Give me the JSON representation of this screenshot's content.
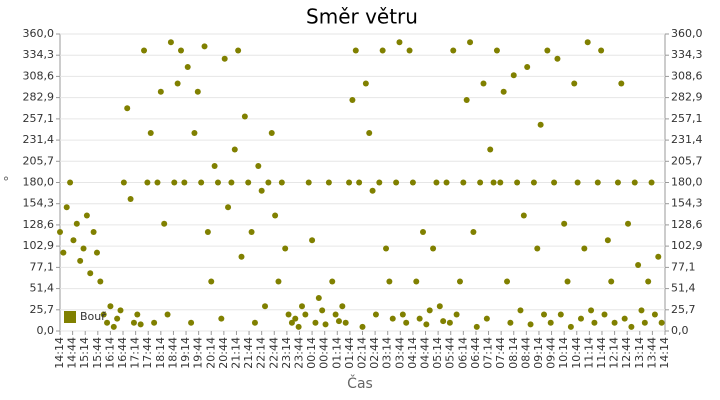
{
  "chart_data": {
    "type": "scatter",
    "title": "Směr větru",
    "x_label": "Čas",
    "y_label": "°",
    "series": [
      {
        "name": "Bouř",
        "color": "#808000",
        "x": [
          0,
          8,
          16,
          24,
          32,
          40,
          48,
          56,
          64,
          72,
          80,
          88,
          96,
          104,
          112,
          120,
          128,
          136,
          144,
          152,
          160,
          168,
          176,
          184,
          192,
          200,
          208,
          216,
          224,
          232,
          240,
          248,
          256,
          264,
          272,
          280,
          288,
          296,
          304,
          312,
          320,
          328,
          336,
          344,
          352,
          360,
          368,
          376,
          384,
          392,
          400,
          408,
          416,
          424,
          432,
          440,
          448,
          456,
          464,
          472,
          480,
          488,
          496,
          504,
          512,
          520,
          528,
          536,
          544,
          552,
          560,
          568,
          576,
          584,
          592,
          600,
          608,
          616,
          624,
          632,
          640,
          648,
          656,
          664,
          672,
          680,
          688,
          696,
          704,
          712,
          720,
          728,
          736,
          744,
          752,
          760,
          768,
          776,
          784,
          792,
          800,
          808,
          816,
          824,
          832,
          840,
          848,
          856,
          864,
          872,
          880,
          888,
          896,
          904,
          912,
          920,
          928,
          936,
          944,
          952,
          960,
          968,
          976,
          984,
          992,
          1000,
          1008,
          1016,
          1024,
          1032,
          1040,
          1048,
          1056,
          1064,
          1072,
          1080,
          1088,
          1096,
          1104,
          1112,
          1120,
          1128,
          1136,
          1144,
          1152,
          1160,
          1168,
          1176,
          1184,
          1192,
          1200,
          1208,
          1216,
          1224,
          1232,
          1240,
          1248,
          1256,
          1264,
          1272,
          1280,
          1288,
          1296,
          1304,
          1312,
          1320,
          1328,
          1336,
          1344,
          1352,
          1360,
          1368,
          1376,
          1384,
          1392,
          1400,
          1408,
          1416,
          1424,
          1432
        ],
        "values": [
          120,
          95,
          150,
          180,
          110,
          130,
          85,
          100,
          140,
          70,
          120,
          95,
          60,
          20,
          10,
          30,
          5,
          15,
          25,
          180,
          270,
          160,
          10,
          20,
          8,
          340,
          180,
          240,
          10,
          180,
          290,
          130,
          20,
          350,
          180,
          300,
          340,
          180,
          320,
          10,
          240,
          290,
          180,
          345,
          120,
          60,
          200,
          180,
          15,
          330,
          150,
          180,
          220,
          340,
          90,
          260,
          180,
          120,
          10,
          200,
          170,
          30,
          180,
          240,
          140,
          60,
          180,
          100,
          20,
          10,
          15,
          5,
          30,
          20,
          180,
          110,
          10,
          40,
          25,
          8,
          180,
          60,
          20,
          12,
          30,
          10,
          180,
          280,
          340,
          180,
          5,
          300,
          240,
          170,
          20,
          180,
          340,
          100,
          60,
          15,
          180,
          350,
          20,
          10,
          340,
          180,
          60,
          15,
          120,
          8,
          25,
          100,
          180,
          30,
          12,
          180,
          10,
          340,
          20,
          60,
          180,
          280,
          350,
          120,
          5,
          180,
          300,
          15,
          220,
          180,
          340,
          180,
          290,
          60,
          10,
          310,
          180,
          25,
          140,
          320,
          8,
          180,
          100,
          250,
          20,
          340,
          10,
          180,
          330,
          20,
          130,
          60,
          5,
          300,
          180,
          15,
          100,
          350,
          25,
          10,
          180,
          340,
          20,
          110,
          60,
          10,
          180,
          300,
          15,
          130,
          5,
          180,
          80,
          25,
          10,
          60,
          180,
          20,
          90,
          10
        ]
      }
    ],
    "xlim": [
      0,
      1440
    ],
    "xticks": [
      {
        "value": 0,
        "label": "14:14"
      },
      {
        "value": 30,
        "label": "14:44"
      },
      {
        "value": 60,
        "label": "15:14"
      },
      {
        "value": 90,
        "label": "15:44"
      },
      {
        "value": 120,
        "label": "16:14"
      },
      {
        "value": 150,
        "label": "16:44"
      },
      {
        "value": 180,
        "label": "17:14"
      },
      {
        "value": 210,
        "label": "17:44"
      },
      {
        "value": 240,
        "label": "18:14"
      },
      {
        "value": 270,
        "label": "18:44"
      },
      {
        "value": 300,
        "label": "19:14"
      },
      {
        "value": 330,
        "label": "19:44"
      },
      {
        "value": 360,
        "label": "20:14"
      },
      {
        "value": 390,
        "label": "20:44"
      },
      {
        "value": 420,
        "label": "21:14"
      },
      {
        "value": 450,
        "label": "21:44"
      },
      {
        "value": 480,
        "label": "22:14"
      },
      {
        "value": 510,
        "label": "22:44"
      },
      {
        "value": 540,
        "label": "23:14"
      },
      {
        "value": 570,
        "label": "23:44"
      },
      {
        "value": 600,
        "label": "00:14"
      },
      {
        "value": 630,
        "label": "00:44"
      },
      {
        "value": 660,
        "label": "01:14"
      },
      {
        "value": 690,
        "label": "01:44"
      },
      {
        "value": 720,
        "label": "02:14"
      },
      {
        "value": 750,
        "label": "02:44"
      },
      {
        "value": 780,
        "label": "03:14"
      },
      {
        "value": 810,
        "label": "03:44"
      },
      {
        "value": 840,
        "label": "04:14"
      },
      {
        "value": 870,
        "label": "04:44"
      },
      {
        "value": 900,
        "label": "05:14"
      },
      {
        "value": 930,
        "label": "05:44"
      },
      {
        "value": 960,
        "label": "06:14"
      },
      {
        "value": 990,
        "label": "06:44"
      },
      {
        "value": 1020,
        "label": "07:14"
      },
      {
        "value": 1050,
        "label": "07:44"
      },
      {
        "value": 1080,
        "label": "08:14"
      },
      {
        "value": 1110,
        "label": "08:44"
      },
      {
        "value": 1140,
        "label": "09:14"
      },
      {
        "value": 1170,
        "label": "09:44"
      },
      {
        "value": 1200,
        "label": "10:14"
      },
      {
        "value": 1230,
        "label": "10:44"
      },
      {
        "value": 1260,
        "label": "11:14"
      },
      {
        "value": 1290,
        "label": "11:44"
      },
      {
        "value": 1320,
        "label": "12:14"
      },
      {
        "value": 1350,
        "label": "12:44"
      },
      {
        "value": 1380,
        "label": "13:14"
      },
      {
        "value": 1410,
        "label": "13:44"
      },
      {
        "value": 1440,
        "label": "14:14"
      }
    ],
    "ylim": [
      0,
      360
    ],
    "yticks": [
      {
        "value": 0,
        "label": "0,0"
      },
      {
        "value": 25.7,
        "label": "25,7"
      },
      {
        "value": 51.4,
        "label": "51,4"
      },
      {
        "value": 77.1,
        "label": "77,1"
      },
      {
        "value": 102.9,
        "label": "102,9"
      },
      {
        "value": 128.6,
        "label": "128,6"
      },
      {
        "value": 154.3,
        "label": "154,3"
      },
      {
        "value": 180,
        "label": "180,0"
      },
      {
        "value": 205.7,
        "label": "205,7"
      },
      {
        "value": 231.4,
        "label": "231,4"
      },
      {
        "value": 257.1,
        "label": "257,1"
      },
      {
        "value": 282.9,
        "label": "282,9"
      },
      {
        "value": 308.6,
        "label": "308,6"
      },
      {
        "value": 334.3,
        "label": "334,3"
      },
      {
        "value": 360,
        "label": "360,0"
      }
    ],
    "y2lim": [
      0,
      360
    ],
    "y2ticks": [
      {
        "value": 0,
        "label": "0,0"
      },
      {
        "value": 25.7,
        "label": "25,7"
      },
      {
        "value": 51.4,
        "label": "51,4"
      },
      {
        "value": 77.1,
        "label": "77,1"
      },
      {
        "value": 102.9,
        "label": "102,9"
      },
      {
        "value": 128.6,
        "label": "128,6"
      },
      {
        "value": 154.3,
        "label": "154,3"
      },
      {
        "value": 180,
        "label": "180,0"
      },
      {
        "value": 205.7,
        "label": "205,7"
      },
      {
        "value": 231.4,
        "label": "231,4"
      },
      {
        "value": 257.1,
        "label": "257,1"
      },
      {
        "value": 282.9,
        "label": "282,9"
      },
      {
        "value": 308.6,
        "label": "308,6"
      },
      {
        "value": 334.3,
        "label": "334,3"
      },
      {
        "value": 360,
        "label": "360,0"
      }
    ],
    "grid": true,
    "legend": "lower left"
  }
}
